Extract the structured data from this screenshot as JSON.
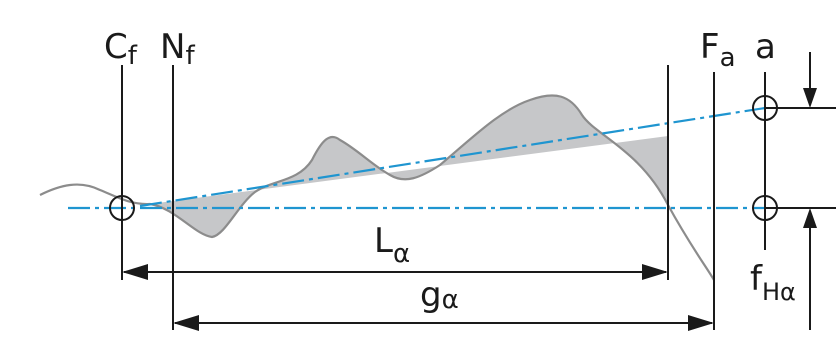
{
  "labels": {
    "cf_main": "C",
    "cf_sub": "f",
    "nf_main": "N",
    "nf_sub": "f",
    "fa_main": "F",
    "fa_sub": "a",
    "a": "a",
    "la_main": "L",
    "la_sub": "α",
    "ga_main": "g",
    "ga_sub": "α",
    "fha_main": "f",
    "fha_sub": "Hα"
  },
  "colors": {
    "line": "#1a1a1a",
    "profile": "#8c8c8c",
    "dashdot": "#1f95d0",
    "area_fill": "#c6c7c9"
  }
}
